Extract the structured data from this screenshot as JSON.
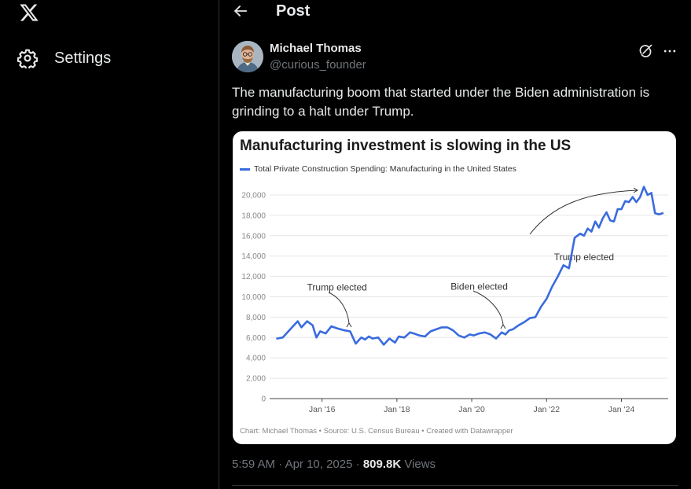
{
  "sidebar": {
    "logo_icon": "x-logo-icon",
    "settings_label": "Settings",
    "settings_icon": "gear-icon"
  },
  "header": {
    "title": "Post",
    "back_icon": "back-arrow-icon"
  },
  "post": {
    "author_name": "Michael Thomas",
    "author_handle": "@curious_founder",
    "text": "The manufacturing boom that started under the Biden administration is grinding to a halt under Trump.",
    "time": "5:59 AM",
    "date": "Apr 10, 2025",
    "views_count": "809.8K",
    "views_label": "Views",
    "separator": "·"
  },
  "chart_data": {
    "type": "line",
    "title": "Manufacturing investment is slowing in the US",
    "legend": [
      "Total Private Construction Spending: Manufacturing in the United States"
    ],
    "footnote": "Chart: Michael Thomas • Source: U.S. Census Bureau • Created with Datawrapper",
    "ylim": [
      0,
      20000
    ],
    "yticks": [
      0,
      2000,
      4000,
      6000,
      8000,
      10000,
      12000,
      14000,
      16000,
      18000,
      20000
    ],
    "ytick_labels": [
      "0",
      "2,000",
      "4,000",
      "6,000",
      "8,000",
      "10,000",
      "12,000",
      "14,000",
      "16,000",
      "18,000",
      "20,000"
    ],
    "xlim": [
      2014.6,
      2025.25
    ],
    "xticks": [
      2016,
      2018,
      2020,
      2022,
      2024
    ],
    "xtick_labels": [
      "Jan '16",
      "Jan '18",
      "Jan '20",
      "Jan '22",
      "Jan '24"
    ],
    "series": [
      {
        "name": "Total Private Construction Spending: Manufacturing in the United States",
        "color": "#3a6bde",
        "x": [
          2014.8,
          2014.95,
          2015.1,
          2015.25,
          2015.35,
          2015.45,
          2015.6,
          2015.75,
          2015.85,
          2015.95,
          2016.1,
          2016.25,
          2016.4,
          2016.6,
          2016.75,
          2016.9,
          2017.05,
          2017.15,
          2017.25,
          2017.35,
          2017.5,
          2017.65,
          2017.8,
          2017.95,
          2018.05,
          2018.2,
          2018.35,
          2018.45,
          2018.6,
          2018.75,
          2018.9,
          2019.05,
          2019.2,
          2019.35,
          2019.5,
          2019.65,
          2019.8,
          2019.95,
          2020.05,
          2020.2,
          2020.35,
          2020.5,
          2020.65,
          2020.8,
          2020.9,
          2021.0,
          2021.1,
          2021.25,
          2021.4,
          2021.55,
          2021.7,
          2021.85,
          2022.0,
          2022.15,
          2022.3,
          2022.45,
          2022.6,
          2022.75,
          2022.9,
          2023.0,
          2023.1,
          2023.2,
          2023.3,
          2023.4,
          2023.5,
          2023.6,
          2023.7,
          2023.8,
          2023.9,
          2024.0,
          2024.1,
          2024.2,
          2024.3,
          2024.4,
          2024.5,
          2024.6,
          2024.7,
          2024.8,
          2024.9,
          2025.0,
          2025.1
        ],
        "values": [
          5900,
          6000,
          6600,
          7200,
          7600,
          7000,
          7600,
          7200,
          6000,
          6600,
          6400,
          7100,
          6900,
          6700,
          6600,
          5400,
          6000,
          5800,
          6100,
          5900,
          6000,
          5300,
          5900,
          5500,
          6100,
          6000,
          6500,
          6400,
          6200,
          6100,
          6600,
          6800,
          7000,
          7000,
          6700,
          6200,
          6000,
          6300,
          6200,
          6400,
          6500,
          6300,
          5900,
          6500,
          6300,
          6700,
          6800,
          7200,
          7500,
          7900,
          8000,
          9000,
          9800,
          11000,
          12000,
          13100,
          12800,
          15800,
          16200,
          16000,
          16700,
          16400,
          17400,
          16800,
          17700,
          18300,
          17500,
          17400,
          18600,
          18600,
          19400,
          19300,
          19800,
          19300,
          19800,
          20800,
          20000,
          20200,
          18200,
          18100,
          18200
        ]
      }
    ],
    "annotations": [
      {
        "label": "Trump elected",
        "x": 2016.4,
        "y": 10600
      },
      {
        "label": "Biden elected",
        "x": 2020.2,
        "y": 10700
      },
      {
        "label": "Trump elected",
        "x": 2023.0,
        "y": 13600
      }
    ]
  }
}
